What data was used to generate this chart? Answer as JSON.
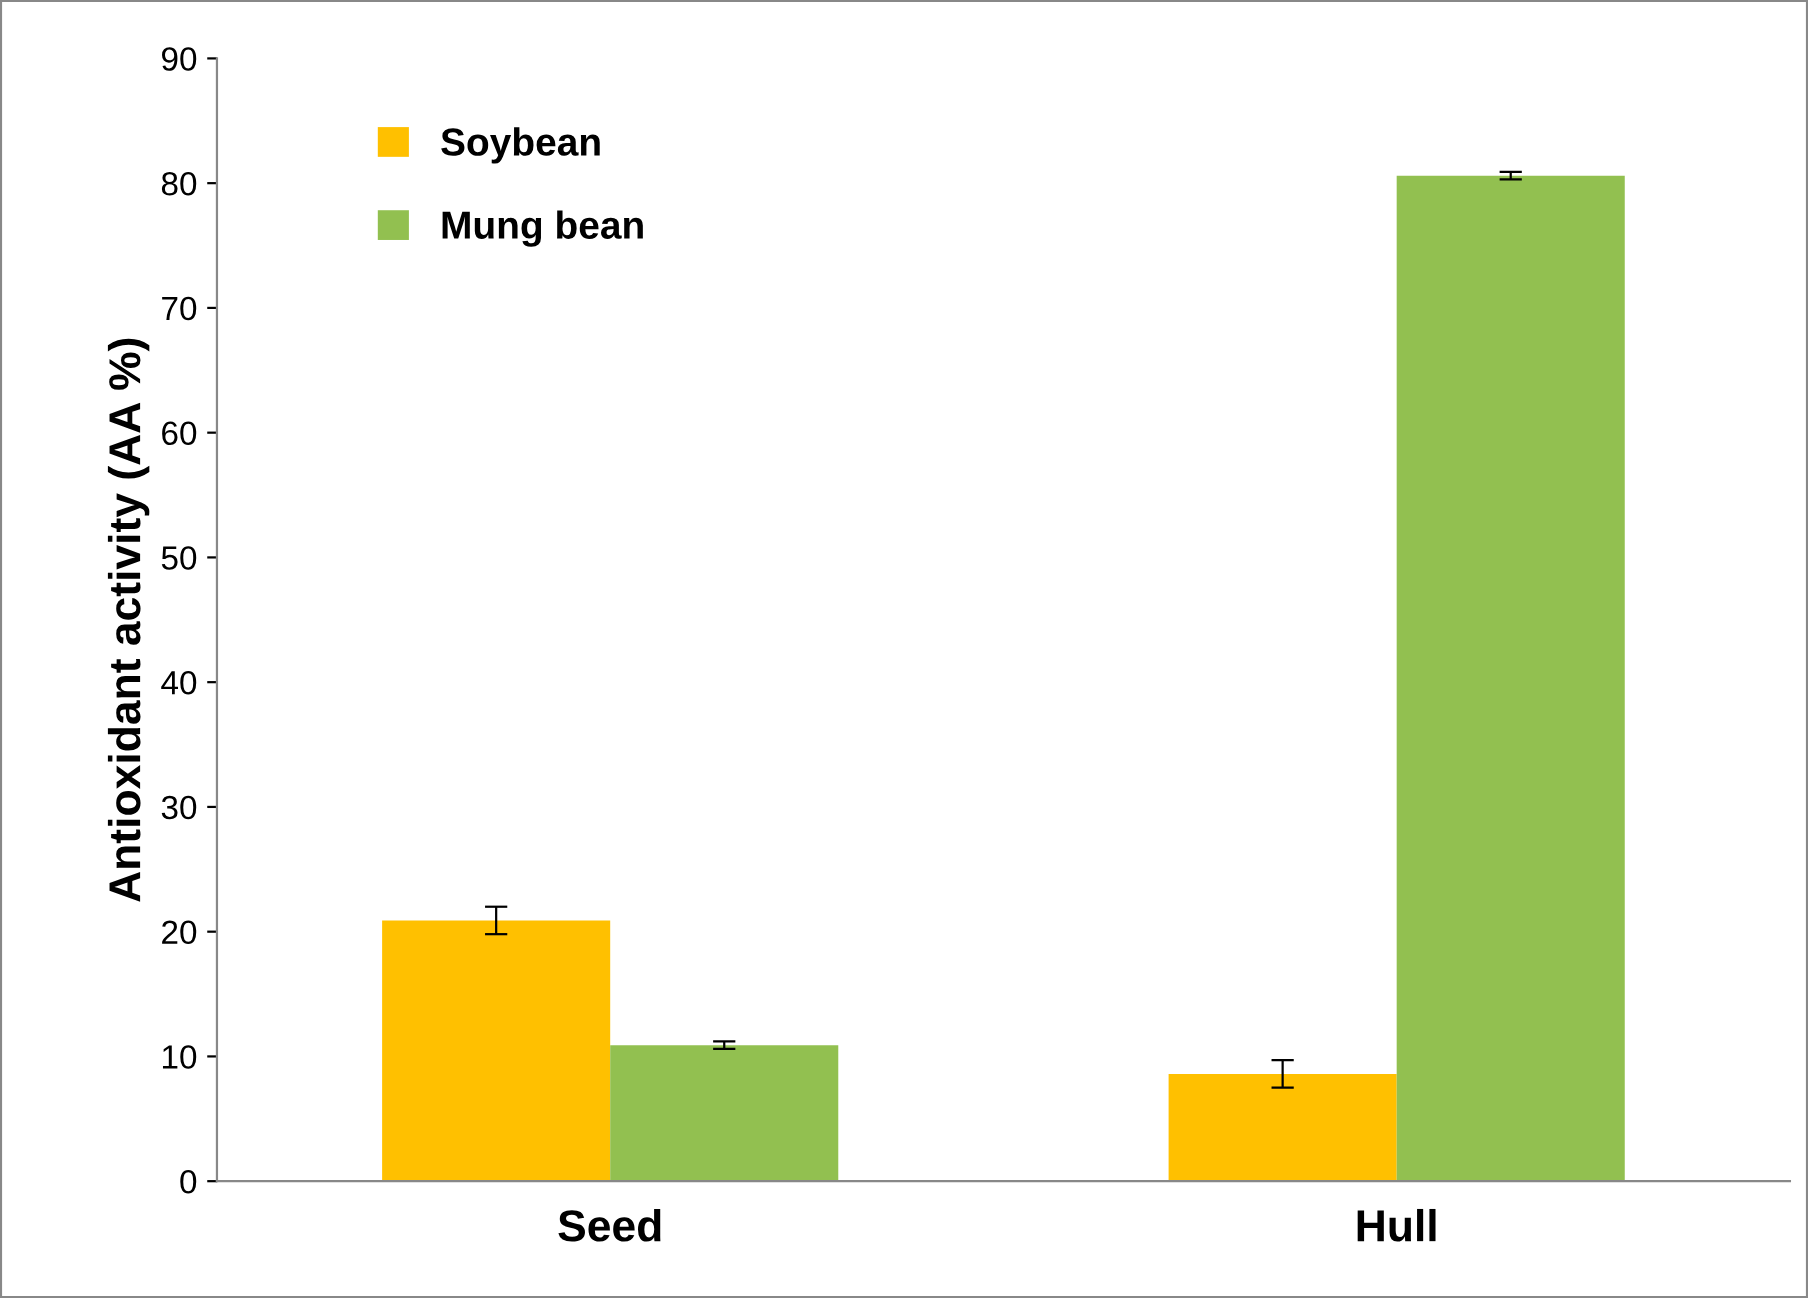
{
  "chart_data": {
    "type": "bar",
    "ylabel": "Antioxidant activity (AA %)",
    "categories": [
      "Seed",
      "Hull"
    ],
    "series": [
      {
        "name": "Soybean",
        "color": "#ffc000",
        "values": [
          20.9,
          8.6
        ],
        "errors": [
          1.1,
          1.1
        ]
      },
      {
        "name": "Mung bean",
        "color": "#92c050",
        "values": [
          10.9,
          80.6
        ],
        "errors": [
          0.3,
          0.3
        ]
      }
    ],
    "ylim": [
      0,
      90
    ],
    "yticks": [
      0,
      10,
      20,
      30,
      40,
      50,
      60,
      70,
      80,
      90
    ],
    "grid": false,
    "legend": "top left"
  }
}
